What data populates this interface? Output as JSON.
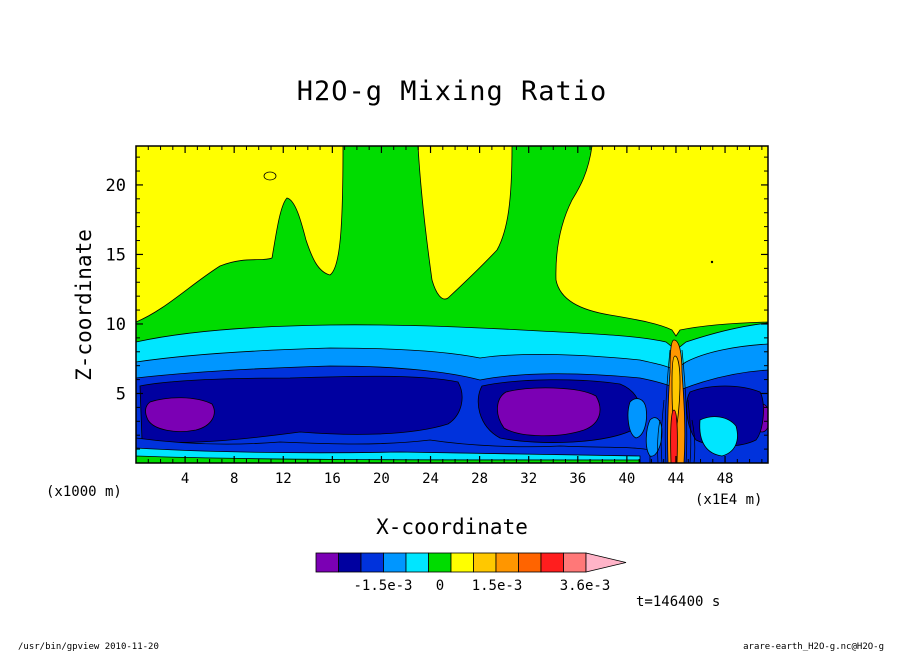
{
  "chart_data": {
    "type": "heatmap",
    "title": "H2O-g Mixing Ratio",
    "xlabel": "X-coordinate",
    "ylabel": "Z-coordinate",
    "x_unit_label": "(x1000 m)",
    "x_scale_label": "(x1E4 m)",
    "xlim": [
      0,
      51.5
    ],
    "ylim": [
      0,
      22.8
    ],
    "xticks": [
      "4",
      "8",
      "12",
      "16",
      "20",
      "24",
      "28",
      "32",
      "36",
      "40",
      "44",
      "48"
    ],
    "yticks": [
      "5",
      "10",
      "15",
      "20"
    ],
    "colorbar": {
      "colors": [
        "#7b00b4",
        "#0000a0",
        "#0032dc",
        "#0096ff",
        "#00e6ff",
        "#00dc00",
        "#ffff00",
        "#ffc800",
        "#ff9600",
        "#ff6400",
        "#ff1e1e",
        "#ff7878",
        "#ffb4c8"
      ],
      "tick_labels": [
        "-1.5e-3",
        "0",
        "1.5e-3",
        "3.6e-3"
      ]
    },
    "time_label": "t=146400 s"
  },
  "footer": {
    "left": "/usr/bin/gpview  2010-11-20",
    "right": "arare-earth_H2O-g.nc@H2O-g"
  }
}
